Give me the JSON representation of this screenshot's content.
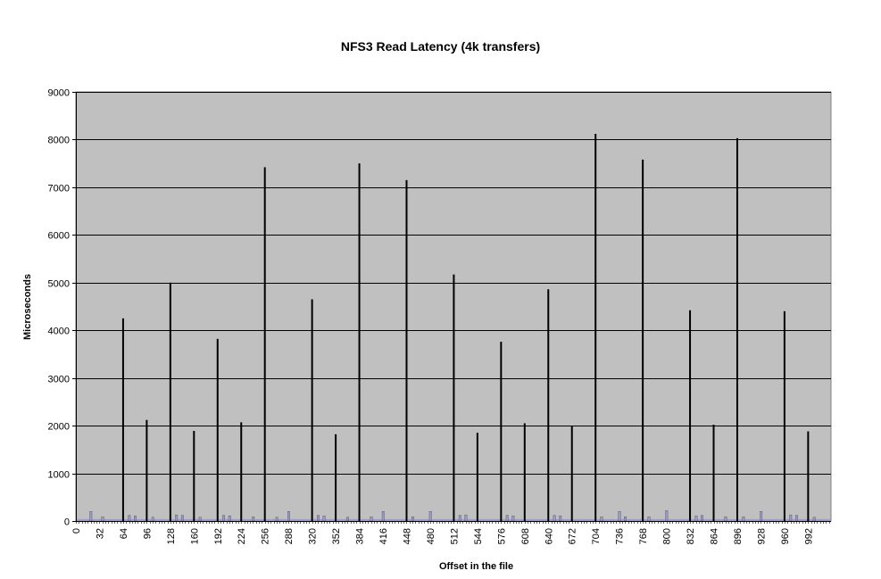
{
  "chart_data": {
    "type": "bar",
    "title": "NFS3 Read Latency (4k transfers)",
    "xlabel": "Offset in the file",
    "ylabel": "Microseconds",
    "ylim": [
      0,
      9000
    ],
    "yticks": [
      0,
      1000,
      2000,
      3000,
      4000,
      5000,
      6000,
      7000,
      8000,
      9000
    ],
    "xlim": [
      0,
      1023
    ],
    "xticks": [
      0,
      32,
      64,
      96,
      128,
      160,
      192,
      224,
      256,
      288,
      320,
      352,
      384,
      416,
      448,
      480,
      512,
      544,
      576,
      608,
      640,
      672,
      704,
      736,
      768,
      800,
      832,
      864,
      896,
      928,
      960,
      992
    ],
    "grid": true,
    "legend": "none",
    "colors": {
      "plot_background": "#c0c0c0",
      "bar": "#000000",
      "small_bar": "#9999cc",
      "gridline": "#000000"
    },
    "baseline_value": 40,
    "peaks": [
      {
        "x": 64,
        "y": 4250
      },
      {
        "x": 96,
        "y": 2120
      },
      {
        "x": 128,
        "y": 5000
      },
      {
        "x": 160,
        "y": 1890
      },
      {
        "x": 192,
        "y": 3820
      },
      {
        "x": 224,
        "y": 2070
      },
      {
        "x": 256,
        "y": 7420
      },
      {
        "x": 320,
        "y": 4650
      },
      {
        "x": 352,
        "y": 1820
      },
      {
        "x": 384,
        "y": 7500
      },
      {
        "x": 448,
        "y": 7150
      },
      {
        "x": 512,
        "y": 5170
      },
      {
        "x": 544,
        "y": 1850
      },
      {
        "x": 576,
        "y": 3760
      },
      {
        "x": 608,
        "y": 2050
      },
      {
        "x": 640,
        "y": 4860
      },
      {
        "x": 672,
        "y": 2000
      },
      {
        "x": 704,
        "y": 8120
      },
      {
        "x": 768,
        "y": 7580
      },
      {
        "x": 832,
        "y": 4420
      },
      {
        "x": 864,
        "y": 2020
      },
      {
        "x": 896,
        "y": 8030
      },
      {
        "x": 960,
        "y": 4400
      },
      {
        "x": 992,
        "y": 1880
      }
    ],
    "small_bars": [
      {
        "x": 20,
        "y": 200
      },
      {
        "x": 36,
        "y": 90
      },
      {
        "x": 72,
        "y": 120
      },
      {
        "x": 80,
        "y": 110
      },
      {
        "x": 104,
        "y": 80
      },
      {
        "x": 136,
        "y": 130
      },
      {
        "x": 144,
        "y": 120
      },
      {
        "x": 168,
        "y": 80
      },
      {
        "x": 200,
        "y": 120
      },
      {
        "x": 208,
        "y": 110
      },
      {
        "x": 240,
        "y": 90
      },
      {
        "x": 272,
        "y": 80
      },
      {
        "x": 288,
        "y": 200
      },
      {
        "x": 328,
        "y": 120
      },
      {
        "x": 336,
        "y": 110
      },
      {
        "x": 368,
        "y": 80
      },
      {
        "x": 400,
        "y": 90
      },
      {
        "x": 416,
        "y": 200
      },
      {
        "x": 456,
        "y": 90
      },
      {
        "x": 480,
        "y": 200
      },
      {
        "x": 520,
        "y": 120
      },
      {
        "x": 528,
        "y": 130
      },
      {
        "x": 584,
        "y": 120
      },
      {
        "x": 592,
        "y": 110
      },
      {
        "x": 648,
        "y": 120
      },
      {
        "x": 656,
        "y": 110
      },
      {
        "x": 712,
        "y": 90
      },
      {
        "x": 736,
        "y": 200
      },
      {
        "x": 744,
        "y": 90
      },
      {
        "x": 776,
        "y": 90
      },
      {
        "x": 800,
        "y": 220
      },
      {
        "x": 840,
        "y": 110
      },
      {
        "x": 848,
        "y": 120
      },
      {
        "x": 880,
        "y": 90
      },
      {
        "x": 904,
        "y": 90
      },
      {
        "x": 928,
        "y": 200
      },
      {
        "x": 968,
        "y": 130
      },
      {
        "x": 976,
        "y": 120
      },
      {
        "x": 1000,
        "y": 80
      }
    ]
  }
}
